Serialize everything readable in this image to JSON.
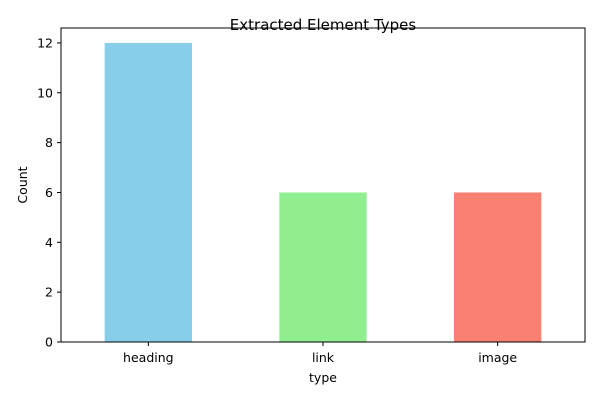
{
  "chart_data": {
    "type": "bar",
    "title": "Extracted Element Types",
    "xlabel": "type",
    "ylabel": "Count",
    "categories": [
      "heading",
      "link",
      "image"
    ],
    "values": [
      12,
      6,
      6
    ],
    "colors": [
      "#87ceeb",
      "#90ee90",
      "#fa8072"
    ],
    "ylim": [
      0,
      12.6
    ],
    "yticks": [
      "0",
      "2",
      "4",
      "6",
      "8",
      "10",
      "12"
    ],
    "grid": false,
    "legend": "none"
  }
}
